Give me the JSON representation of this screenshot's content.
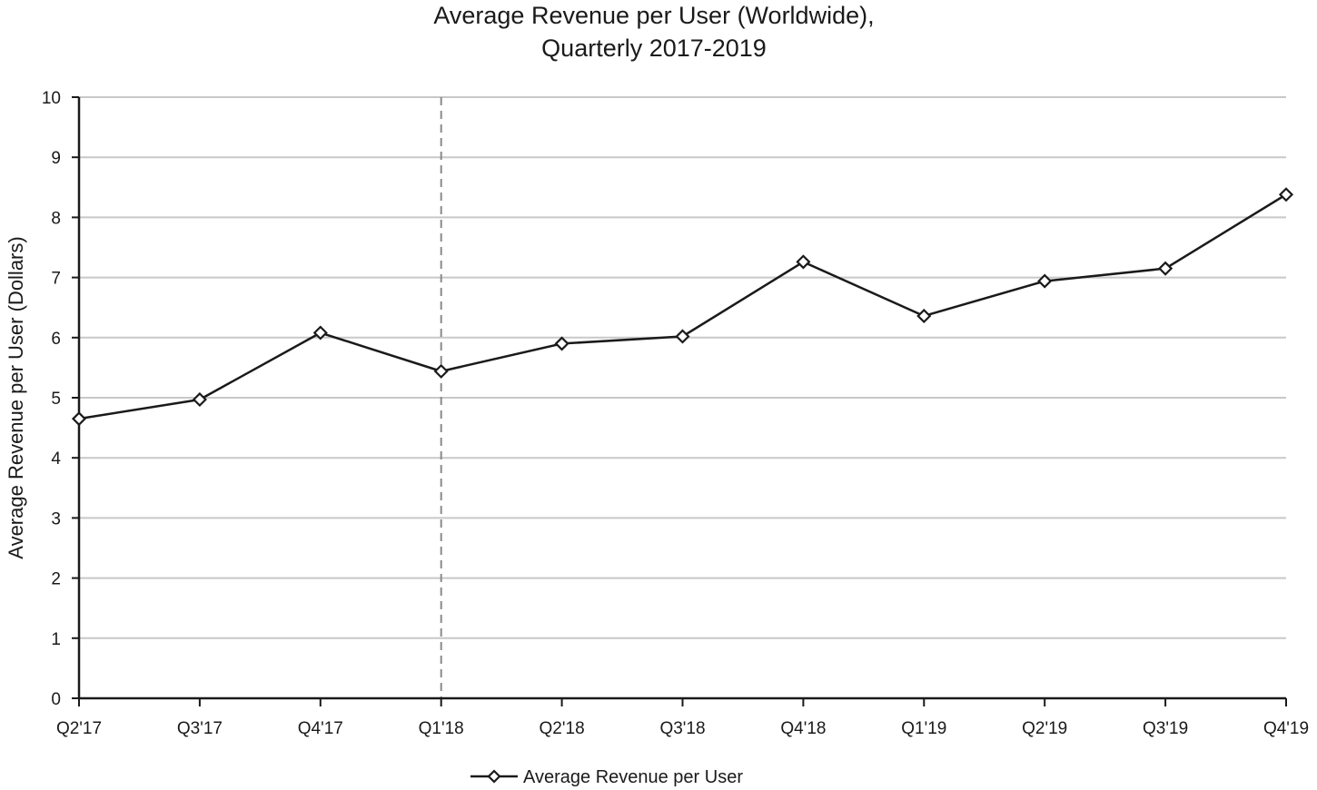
{
  "chart_data": {
    "type": "line",
    "title": [
      "Average Revenue per User (Worldwide),",
      "Quarterly 2017-2019"
    ],
    "xlabel": "",
    "ylabel": "Average Revenue per User (Dollars)",
    "categories": [
      "Q2'17",
      "Q3'17",
      "Q4'17",
      "Q1'18",
      "Q2'18",
      "Q3'18",
      "Q4'18",
      "Q1'19",
      "Q2'19",
      "Q3'19",
      "Q4'19"
    ],
    "series": [
      {
        "name": "Average Revenue per User",
        "values": [
          4.65,
          4.97,
          6.08,
          5.44,
          5.9,
          6.02,
          7.26,
          6.36,
          6.94,
          7.15,
          8.38
        ],
        "color": "#1a1a1a",
        "marker": "diamond"
      }
    ],
    "ylim": [
      0,
      10
    ],
    "yticks": [
      0,
      1,
      2,
      3,
      4,
      5,
      6,
      7,
      8,
      9,
      10
    ],
    "grid": "horizontal",
    "reference_line": {
      "at_category": "Q1'18",
      "style": "dashed"
    },
    "legend": "bottom-center",
    "colors": {
      "line": "#1a1a1a",
      "grid": "#c8c8c8",
      "reference_line": "#8a8a8a"
    }
  }
}
